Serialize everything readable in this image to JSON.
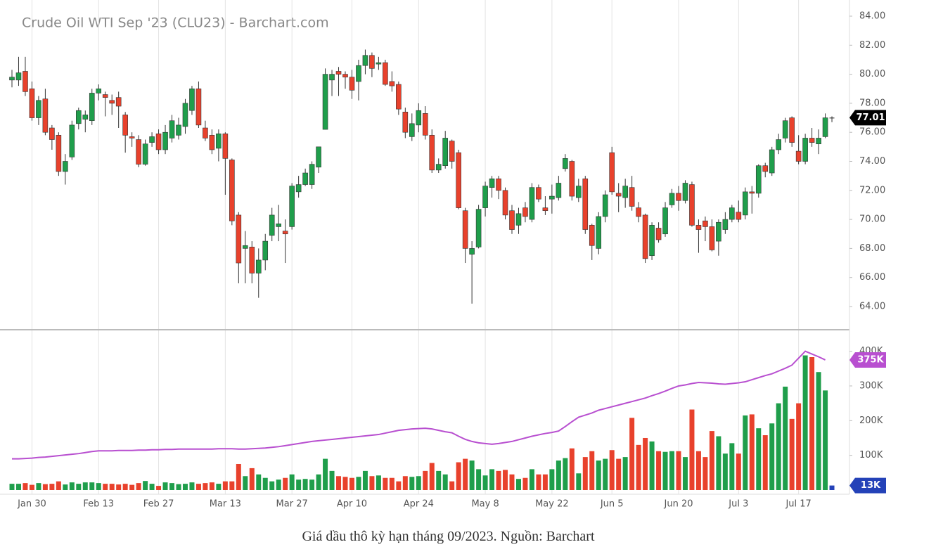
{
  "chart_data": {
    "type": "candlestick",
    "title": "Crude Oil WTI Sep '23 (CLU23) - Barchart.com",
    "caption": "Giá dầu thô kỳ hạn tháng 09/2023. Nguồn: Barchart",
    "categories": [
      null,
      null,
      null,
      "Jan 30",
      null,
      null,
      null,
      null,
      null,
      null,
      null,
      null,
      null,
      "Feb 13",
      null,
      null,
      null,
      null,
      null,
      null,
      null,
      null,
      "Feb 27",
      null,
      null,
      null,
      null,
      null,
      null,
      null,
      null,
      null,
      "Mar 13",
      null,
      null,
      null,
      null,
      null,
      null,
      null,
      null,
      null,
      "Mar 27",
      null,
      null,
      null,
      null,
      null,
      null,
      null,
      null,
      "Apr 10",
      null,
      null,
      null,
      null,
      null,
      null,
      null,
      null,
      null,
      "Apr 24",
      null,
      null,
      null,
      null,
      null,
      null,
      null,
      null,
      null,
      "May 8",
      null,
      null,
      null,
      null,
      null,
      null,
      null,
      null,
      null,
      "May 22",
      null,
      null,
      null,
      null,
      null,
      null,
      null,
      null,
      "Jun 5",
      null,
      null,
      null,
      null,
      null,
      null,
      null,
      null,
      null,
      "Jun 20",
      null,
      null,
      null,
      null,
      null,
      null,
      null,
      null,
      "Jul 3",
      null,
      null,
      null,
      null,
      null,
      null,
      null,
      null,
      "Jul 17",
      null,
      null,
      null,
      null,
      null
    ],
    "open": [
      79.6,
      79.6,
      80.2,
      79.0,
      77.0,
      78.3,
      76.3,
      75.8,
      73.3,
      74.3,
      76.6,
      76.9,
      76.8,
      78.7,
      78.6,
      78.2,
      78.4,
      77.2,
      75.7,
      75.5,
      73.8,
      75.3,
      75.9,
      74.8,
      75.6,
      75.8,
      76.4,
      77.5,
      79.0,
      76.3,
      75.8,
      74.9,
      75.9,
      74.1,
      70.3,
      68.0,
      68.1,
      66.3,
      67.2,
      68.9,
      69.5,
      69.2,
      69.5,
      71.9,
      72.4,
      72.4,
      73.6,
      76.2,
      79.6,
      80.2,
      80.0,
      79.8,
      79.5,
      80.6,
      81.3,
      80.7,
      80.8,
      79.5,
      79.3,
      77.4,
      75.7,
      76.5,
      77.3,
      75.8,
      73.4,
      73.7,
      75.4,
      74.6,
      70.6,
      67.6,
      68.1,
      70.8,
      72.2,
      72.8,
      72.0,
      70.6,
      69.6,
      70.8,
      70.0,
      72.2,
      70.8,
      71.4,
      71.5,
      73.5,
      74.0,
      71.5,
      72.8,
      69.6,
      68.0,
      70.2,
      74.6,
      71.8,
      71.5,
      72.2,
      70.8,
      70.3,
      67.5,
      69.4,
      69.0,
      71.0,
      71.8,
      71.3,
      72.4,
      69.6,
      69.9,
      69.5,
      68.5,
      69.3,
      70.0,
      70.5,
      70.3,
      71.9,
      71.8,
      73.7,
      73.2,
      74.8,
      75.6,
      77.0,
      74.7,
      74.0,
      75.6,
      75.2,
      75.7,
      77.0
    ],
    "high": [
      80.3,
      81.2,
      81.2,
      79.5,
      78.5,
      79.0,
      76.5,
      76.0,
      74.5,
      76.8,
      77.7,
      77.5,
      79.0,
      79.3,
      78.8,
      78.6,
      78.8,
      77.4,
      76.0,
      75.8,
      75.5,
      76.0,
      76.2,
      76.5,
      77.2,
      77.0,
      78.3,
      79.2,
      79.5,
      76.8,
      76.2,
      76.2,
      76.0,
      74.2,
      70.5,
      69.2,
      68.5,
      68.0,
      69.0,
      70.8,
      71.0,
      70.0,
      72.5,
      73.0,
      73.5,
      74.0,
      75.0,
      80.4,
      80.3,
      80.5,
      80.2,
      80.3,
      81.0,
      81.7,
      81.5,
      81.2,
      81.0,
      80.2,
      79.5,
      77.7,
      77.3,
      78.0,
      77.8,
      76.2,
      74.2,
      76.1,
      75.5,
      74.8,
      70.8,
      68.5,
      71.0,
      72.6,
      73.0,
      73.0,
      72.2,
      71.0,
      70.8,
      71.2,
      72.5,
      72.4,
      71.6,
      72.4,
      73.0,
      74.5,
      74.1,
      72.8,
      73.0,
      69.7,
      70.5,
      72.0,
      75.0,
      72.5,
      72.8,
      73.0,
      71.2,
      70.4,
      69.8,
      69.8,
      71.2,
      72.1,
      72.3,
      72.7,
      72.6,
      70.0,
      70.2,
      70.0,
      70.0,
      70.5,
      71.0,
      71.3,
      72.2,
      72.3,
      73.8,
      73.9,
      75.0,
      75.9,
      77.0,
      77.1,
      75.8,
      75.9,
      76.3,
      76.2,
      77.3,
      77.1
    ],
    "low": [
      79.1,
      79.2,
      78.5,
      76.8,
      76.5,
      75.8,
      74.8,
      73.0,
      72.4,
      74.1,
      76.2,
      76.0,
      76.5,
      78.2,
      77.1,
      77.2,
      76.3,
      74.6,
      75.0,
      73.6,
      73.7,
      75.0,
      74.5,
      74.5,
      75.3,
      75.5,
      75.9,
      77.2,
      76.3,
      75.4,
      74.5,
      74.0,
      71.7,
      69.6,
      65.6,
      65.6,
      65.6,
      64.6,
      66.5,
      68.5,
      68.5,
      67.0,
      69.3,
      71.5,
      72.3,
      72.1,
      73.2,
      76.2,
      78.5,
      78.5,
      79.0,
      78.3,
      78.2,
      80.0,
      79.8,
      80.3,
      79.2,
      78.8,
      77.2,
      75.6,
      75.4,
      76.0,
      75.5,
      73.2,
      73.2,
      73.5,
      73.5,
      70.7,
      67.0,
      64.2,
      68.0,
      70.2,
      71.5,
      71.4,
      70.0,
      69.0,
      69.0,
      69.8,
      69.8,
      71.2,
      70.3,
      70.4,
      71.3,
      73.3,
      71.3,
      71.2,
      69.0,
      67.2,
      67.6,
      69.8,
      71.7,
      70.5,
      70.8,
      70.6,
      69.8,
      67.0,
      67.2,
      68.4,
      68.8,
      70.8,
      70.6,
      71.1,
      69.5,
      67.7,
      68.5,
      67.8,
      67.5,
      69.0,
      69.8,
      69.8,
      70.0,
      70.4,
      71.5,
      72.9,
      73.0,
      74.5,
      75.3,
      75.0,
      73.8,
      73.8,
      75.0,
      74.5,
      75.6,
      76.7
    ],
    "close": [
      79.8,
      80.1,
      78.8,
      77.0,
      78.2,
      76.0,
      75.5,
      73.3,
      74.0,
      76.5,
      77.5,
      77.2,
      78.7,
      79.0,
      78.4,
      78.0,
      77.8,
      75.8,
      75.6,
      73.8,
      75.2,
      75.7,
      74.8,
      76.0,
      76.8,
      76.5,
      78.0,
      79.0,
      76.5,
      75.6,
      74.8,
      75.9,
      74.2,
      69.9,
      67.0,
      68.2,
      66.3,
      67.2,
      68.5,
      70.3,
      69.7,
      69.0,
      72.3,
      72.4,
      73.2,
      73.8,
      75.0,
      80.0,
      80.0,
      80.0,
      79.8,
      78.9,
      80.6,
      81.3,
      80.4,
      80.8,
      79.3,
      79.2,
      77.6,
      76.0,
      76.6,
      77.5,
      75.8,
      73.4,
      73.8,
      75.6,
      74.0,
      70.8,
      68.0,
      68.0,
      70.7,
      72.3,
      72.8,
      72.0,
      70.3,
      69.3,
      70.4,
      70.2,
      72.2,
      71.4,
      70.6,
      71.6,
      72.5,
      74.2,
      71.6,
      72.3,
      69.3,
      68.2,
      70.2,
      71.7,
      71.9,
      71.6,
      72.3,
      70.9,
      70.2,
      67.3,
      69.6,
      68.6,
      70.8,
      71.8,
      71.3,
      72.5,
      69.6,
      69.3,
      69.5,
      67.9,
      69.8,
      70.0,
      70.8,
      70.0,
      71.9,
      71.8,
      73.7,
      73.3,
      74.8,
      75.5,
      76.8,
      75.3,
      74.0,
      75.6,
      75.3,
      75.6,
      77.0,
      77.01
    ],
    "close_value_labels": [
      null,
      null,
      null,
      null,
      null,
      null,
      null,
      null,
      null,
      null,
      null,
      null,
      null,
      null,
      null,
      null,
      null,
      null,
      null,
      null,
      null,
      null,
      null,
      null,
      null,
      null,
      null,
      null,
      null,
      null,
      null,
      null,
      null,
      null,
      null,
      null,
      null,
      null,
      null,
      null,
      null,
      null,
      null,
      null,
      null,
      null,
      null,
      null,
      null,
      null,
      null,
      null,
      null,
      null,
      null,
      null,
      null,
      null,
      null,
      null,
      null,
      null,
      null,
      null,
      null,
      null,
      null,
      null,
      null,
      null,
      null,
      null,
      null,
      null,
      null,
      null,
      null,
      null,
      null,
      null,
      null,
      null,
      null,
      null,
      null,
      null,
      null,
      null,
      null,
      null,
      null,
      null,
      null,
      null,
      null,
      null,
      null,
      null,
      null,
      null,
      null,
      null,
      null,
      null,
      null,
      null,
      null,
      null,
      null,
      null,
      null,
      null,
      null,
      null,
      null,
      null,
      null,
      null,
      null,
      null,
      null,
      null,
      null,
      "77.01"
    ],
    "up_color": "#1f9e4b",
    "down_color": "#e8412c",
    "current_color": "#2a2a2a",
    "ylim": [
      62.45,
      84.63
    ],
    "yticks": [
      {
        "value": 64,
        "label": "64.00"
      },
      {
        "value": 66,
        "label": "66.00"
      },
      {
        "value": 68,
        "label": "68.00"
      },
      {
        "value": 70,
        "label": "70.00"
      },
      {
        "value": 72,
        "label": "72.00"
      },
      {
        "value": 74,
        "label": "74.00"
      },
      {
        "value": 76,
        "label": "76.00"
      },
      {
        "value": 78,
        "label": "78.00"
      },
      {
        "value": 80,
        "label": "80.00"
      },
      {
        "value": 82,
        "label": "82.00"
      },
      {
        "value": 84,
        "label": "84.00"
      }
    ],
    "grid": "x",
    "y2lim": [
      0,
      460
    ],
    "y2ticks": [
      {
        "value": 100,
        "label": "100K"
      },
      {
        "value": 200,
        "label": "200K"
      },
      {
        "value": 300,
        "label": "300K"
      },
      {
        "value": 400,
        "label": "400K"
      }
    ],
    "volume": {
      "axis": "y2",
      "current_color": "#2442b8",
      "values": [
        18,
        18,
        20,
        15,
        20,
        17,
        18,
        25,
        16,
        22,
        18,
        22,
        22,
        20,
        18,
        18,
        16,
        18,
        15,
        20,
        26,
        18,
        12,
        22,
        20,
        17,
        18,
        22,
        18,
        20,
        22,
        18,
        25,
        25,
        75,
        40,
        63,
        45,
        35,
        25,
        30,
        35,
        45,
        30,
        32,
        30,
        45,
        90,
        55,
        40,
        38,
        35,
        38,
        55,
        40,
        42,
        35,
        35,
        25,
        40,
        38,
        40,
        55,
        78,
        55,
        45,
        25,
        80,
        90,
        85,
        60,
        42,
        60,
        55,
        58,
        45,
        32,
        35,
        60,
        45,
        45,
        60,
        85,
        92,
        120,
        48,
        95,
        112,
        85,
        90,
        115,
        90,
        95,
        208,
        130,
        150,
        140,
        112,
        110,
        112,
        112,
        95,
        232,
        112,
        95,
        170,
        155,
        105,
        135,
        105,
        215,
        218,
        178,
        158,
        192,
        250,
        298,
        205,
        250,
        388,
        383,
        340,
        287,
        13
      ],
      "value_labels": [
        null,
        null,
        null,
        null,
        null,
        null,
        null,
        null,
        null,
        null,
        null,
        null,
        null,
        null,
        null,
        null,
        null,
        null,
        null,
        null,
        null,
        null,
        null,
        null,
        null,
        null,
        null,
        null,
        null,
        null,
        null,
        null,
        null,
        null,
        null,
        null,
        null,
        null,
        null,
        null,
        null,
        null,
        null,
        null,
        null,
        null,
        null,
        null,
        null,
        null,
        null,
        null,
        null,
        null,
        null,
        null,
        null,
        null,
        null,
        null,
        null,
        null,
        null,
        null,
        null,
        null,
        null,
        null,
        null,
        null,
        null,
        null,
        null,
        null,
        null,
        null,
        null,
        null,
        null,
        null,
        null,
        null,
        null,
        null,
        null,
        null,
        null,
        null,
        null,
        null,
        null,
        null,
        null,
        null,
        null,
        null,
        null,
        null,
        null,
        null,
        null,
        null,
        null,
        null,
        null,
        null,
        null,
        null,
        null,
        null,
        null,
        null,
        null,
        null,
        null,
        null,
        null,
        null,
        null,
        null,
        null,
        null,
        null,
        "13K"
      ]
    },
    "volume_average": {
      "axis": "y2",
      "color": "#b84fd0",
      "values": [
        90,
        90,
        91,
        92,
        94,
        95,
        97,
        99,
        101,
        103,
        105,
        108,
        111,
        113,
        113,
        113,
        114,
        114,
        114,
        115,
        115,
        116,
        116,
        117,
        117,
        118,
        118,
        118,
        118,
        118,
        118,
        119,
        119,
        119,
        118,
        118,
        119,
        120,
        121,
        123,
        125,
        128,
        131,
        134,
        137,
        140,
        142,
        144,
        146,
        148,
        150,
        152,
        154,
        156,
        158,
        160,
        164,
        168,
        172,
        174,
        176,
        177,
        178,
        176,
        172,
        168,
        165,
        155,
        146,
        140,
        136,
        134,
        132,
        134,
        137,
        140,
        145,
        150,
        155,
        159,
        163,
        166,
        170,
        183,
        197,
        210,
        216,
        222,
        230,
        235,
        240,
        245,
        250,
        255,
        260,
        265,
        272,
        278,
        285,
        293,
        300,
        303,
        307,
        310,
        309,
        308,
        306,
        305,
        307,
        309,
        312,
        318,
        324,
        330,
        335,
        343,
        351,
        360,
        380,
        400,
        392,
        384,
        375,
        null
      ],
      "value_labels": [
        null,
        null,
        null,
        null,
        null,
        null,
        null,
        null,
        null,
        null,
        null,
        null,
        null,
        null,
        null,
        null,
        null,
        null,
        null,
        null,
        null,
        null,
        null,
        null,
        null,
        null,
        null,
        null,
        null,
        null,
        null,
        null,
        null,
        null,
        null,
        null,
        null,
        null,
        null,
        null,
        null,
        null,
        null,
        null,
        null,
        null,
        null,
        null,
        null,
        null,
        null,
        null,
        null,
        null,
        null,
        null,
        null,
        null,
        null,
        null,
        null,
        null,
        null,
        null,
        null,
        null,
        null,
        null,
        null,
        null,
        null,
        null,
        null,
        null,
        null,
        null,
        null,
        null,
        null,
        null,
        null,
        null,
        null,
        null,
        null,
        null,
        null,
        null,
        null,
        null,
        null,
        null,
        null,
        null,
        null,
        null,
        null,
        null,
        null,
        null,
        null,
        null,
        null,
        null,
        null,
        null,
        null,
        null,
        null,
        null,
        null,
        null,
        null,
        null,
        null,
        null,
        null,
        null,
        null,
        null,
        null,
        null,
        "375K",
        null
      ]
    }
  }
}
